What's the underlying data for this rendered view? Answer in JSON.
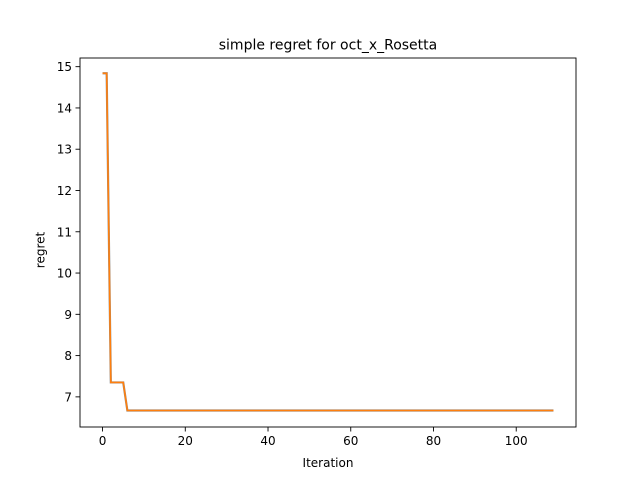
{
  "chart_data": {
    "type": "line",
    "title": "simple regret for oct_x_Rosetta",
    "xlabel": "Iteration",
    "ylabel": "regret",
    "xlim": [
      -5.45,
      114.45
    ],
    "ylim": [
      6.27,
      15.21
    ],
    "xticks": [
      0,
      20,
      40,
      60,
      80,
      100
    ],
    "yticks": [
      7,
      8,
      9,
      10,
      11,
      12,
      13,
      14,
      15
    ],
    "grid": false,
    "series": [
      {
        "color": "#ff7f0e",
        "overlay_color": "#8c8c8c",
        "step_points": [
          [
            0,
            14.84
          ],
          [
            1,
            14.84
          ],
          [
            2,
            7.35
          ],
          [
            5,
            7.35
          ],
          [
            6,
            6.67
          ],
          [
            109,
            6.67
          ]
        ]
      }
    ]
  }
}
